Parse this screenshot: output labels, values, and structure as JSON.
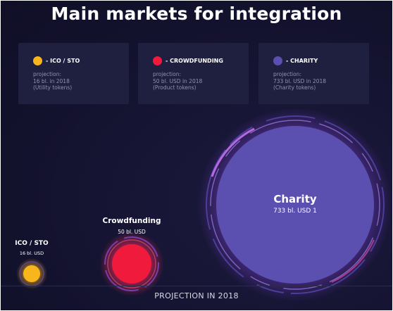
{
  "title": "Main markets for integration",
  "colors": {
    "ico": "#f8b51c",
    "crowdfunding": "#f01a3c",
    "charity": "#5b4fb0"
  },
  "cards": [
    {
      "label": "- ICO / STO",
      "line1": "projection:",
      "line2": "16 bl. in 2018",
      "line3": "(Utility tokens)"
    },
    {
      "label": "- CROWDFUNDING",
      "line1": "projection:",
      "line2": "50 bl. USD in 2018",
      "line3": "(Product tokens)"
    },
    {
      "label": "- CHARITY",
      "line1": "projection:",
      "line2": "733 bl. USD in 2018",
      "line3": "(Charity tokens)"
    }
  ],
  "bubbles": {
    "ico": {
      "name": "ICO / STO",
      "value": "16 bl. USD"
    },
    "crowdfunding": {
      "name": "Crowdfunding",
      "value": "50 bl. USD"
    },
    "charity": {
      "name": "Charity",
      "value": "733 bl. USD 1"
    }
  },
  "footer": "PROJECTION IN 2018"
}
